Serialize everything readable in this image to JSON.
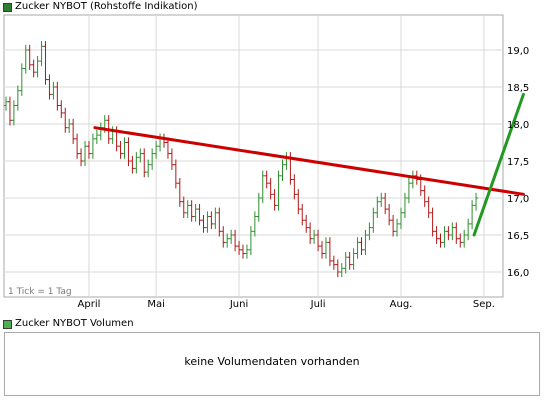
{
  "colors": {
    "up": "#2f8f2f",
    "down": "#b01818",
    "trend_down": "#cc0000",
    "trend_up": "#229922",
    "legend_swatch": "#2e7d32",
    "legend_swatch_vol": "#4caf50",
    "grid": "#d9d9d9",
    "frame": "#a8a8a8"
  },
  "price_legend": "Zucker NYBOT (Rohstoffe Indikation)",
  "volume_legend": "Zucker NYBOT Volumen",
  "tick_note": "1 Tick = 1 Tag",
  "volume_message": "keine Volumendaten vorhanden",
  "chart_data": {
    "type": "line",
    "subtype": "bar-ohlc",
    "title": "",
    "xlabel": "",
    "ylabel": "",
    "ylim": [
      15.8,
      19.4
    ],
    "yticks": [
      16.0,
      16.5,
      17.0,
      17.5,
      18.0,
      18.5,
      19.0
    ],
    "ytick_labels": [
      "16,0",
      "16,5",
      "17,0",
      "17,5",
      "18,0",
      "18,5",
      "19,0"
    ],
    "x_range": [
      0,
      124
    ],
    "month_ticks": [
      {
        "label": "April",
        "x": 21
      },
      {
        "label": "Mai",
        "x": 38
      },
      {
        "label": "Juni",
        "x": 59
      },
      {
        "label": "Juli",
        "x": 79
      },
      {
        "label": "Aug.",
        "x": 100
      },
      {
        "label": "Sep.",
        "x": 121
      }
    ],
    "grid": true,
    "series": [
      {
        "values": [
          18.3,
          18.05,
          18.25,
          18.45,
          18.75,
          19.0,
          18.8,
          18.7,
          18.85,
          19.05,
          18.6,
          18.4,
          18.5,
          18.25,
          18.15,
          17.95,
          18.0,
          17.8,
          17.6,
          17.5,
          17.7,
          17.6,
          17.8,
          17.85,
          17.95,
          18.05,
          17.8,
          17.9,
          17.7,
          17.6,
          17.75,
          17.5,
          17.4,
          17.55,
          17.6,
          17.35,
          17.45,
          17.6,
          17.7,
          17.8,
          17.75,
          17.6,
          17.45,
          17.2,
          16.95,
          16.8,
          16.9,
          16.75,
          16.85,
          16.7,
          16.6,
          16.75,
          16.65,
          16.8,
          16.55,
          16.4,
          16.45,
          16.5,
          16.35,
          16.3,
          16.25,
          16.3,
          16.55,
          16.75,
          17.0,
          17.3,
          17.2,
          17.05,
          16.9,
          17.3,
          17.45,
          17.55,
          17.25,
          17.05,
          16.85,
          16.7,
          16.6,
          16.45,
          16.5,
          16.35,
          16.25,
          16.4,
          16.15,
          16.1,
          16.0,
          16.05,
          16.2,
          16.1,
          16.25,
          16.4,
          16.3,
          16.5,
          16.6,
          16.8,
          16.95,
          17.0,
          16.85,
          16.7,
          16.55,
          16.65,
          16.8,
          17.0,
          17.2,
          17.3,
          17.25,
          17.1,
          16.95,
          16.8,
          16.55,
          16.45,
          16.4,
          16.55,
          16.5,
          16.6,
          16.45,
          16.4,
          16.5,
          16.65,
          16.9,
          17.0
        ]
      }
    ],
    "trendlines": [
      {
        "name": "resistance",
        "color": "trend_down",
        "from": [
          22.5,
          17.95
        ],
        "to": [
          131,
          17.05
        ]
      },
      {
        "name": "breakout",
        "color": "trend_up",
        "from": [
          118.5,
          16.5
        ],
        "to": [
          131,
          18.4
        ]
      }
    ]
  }
}
